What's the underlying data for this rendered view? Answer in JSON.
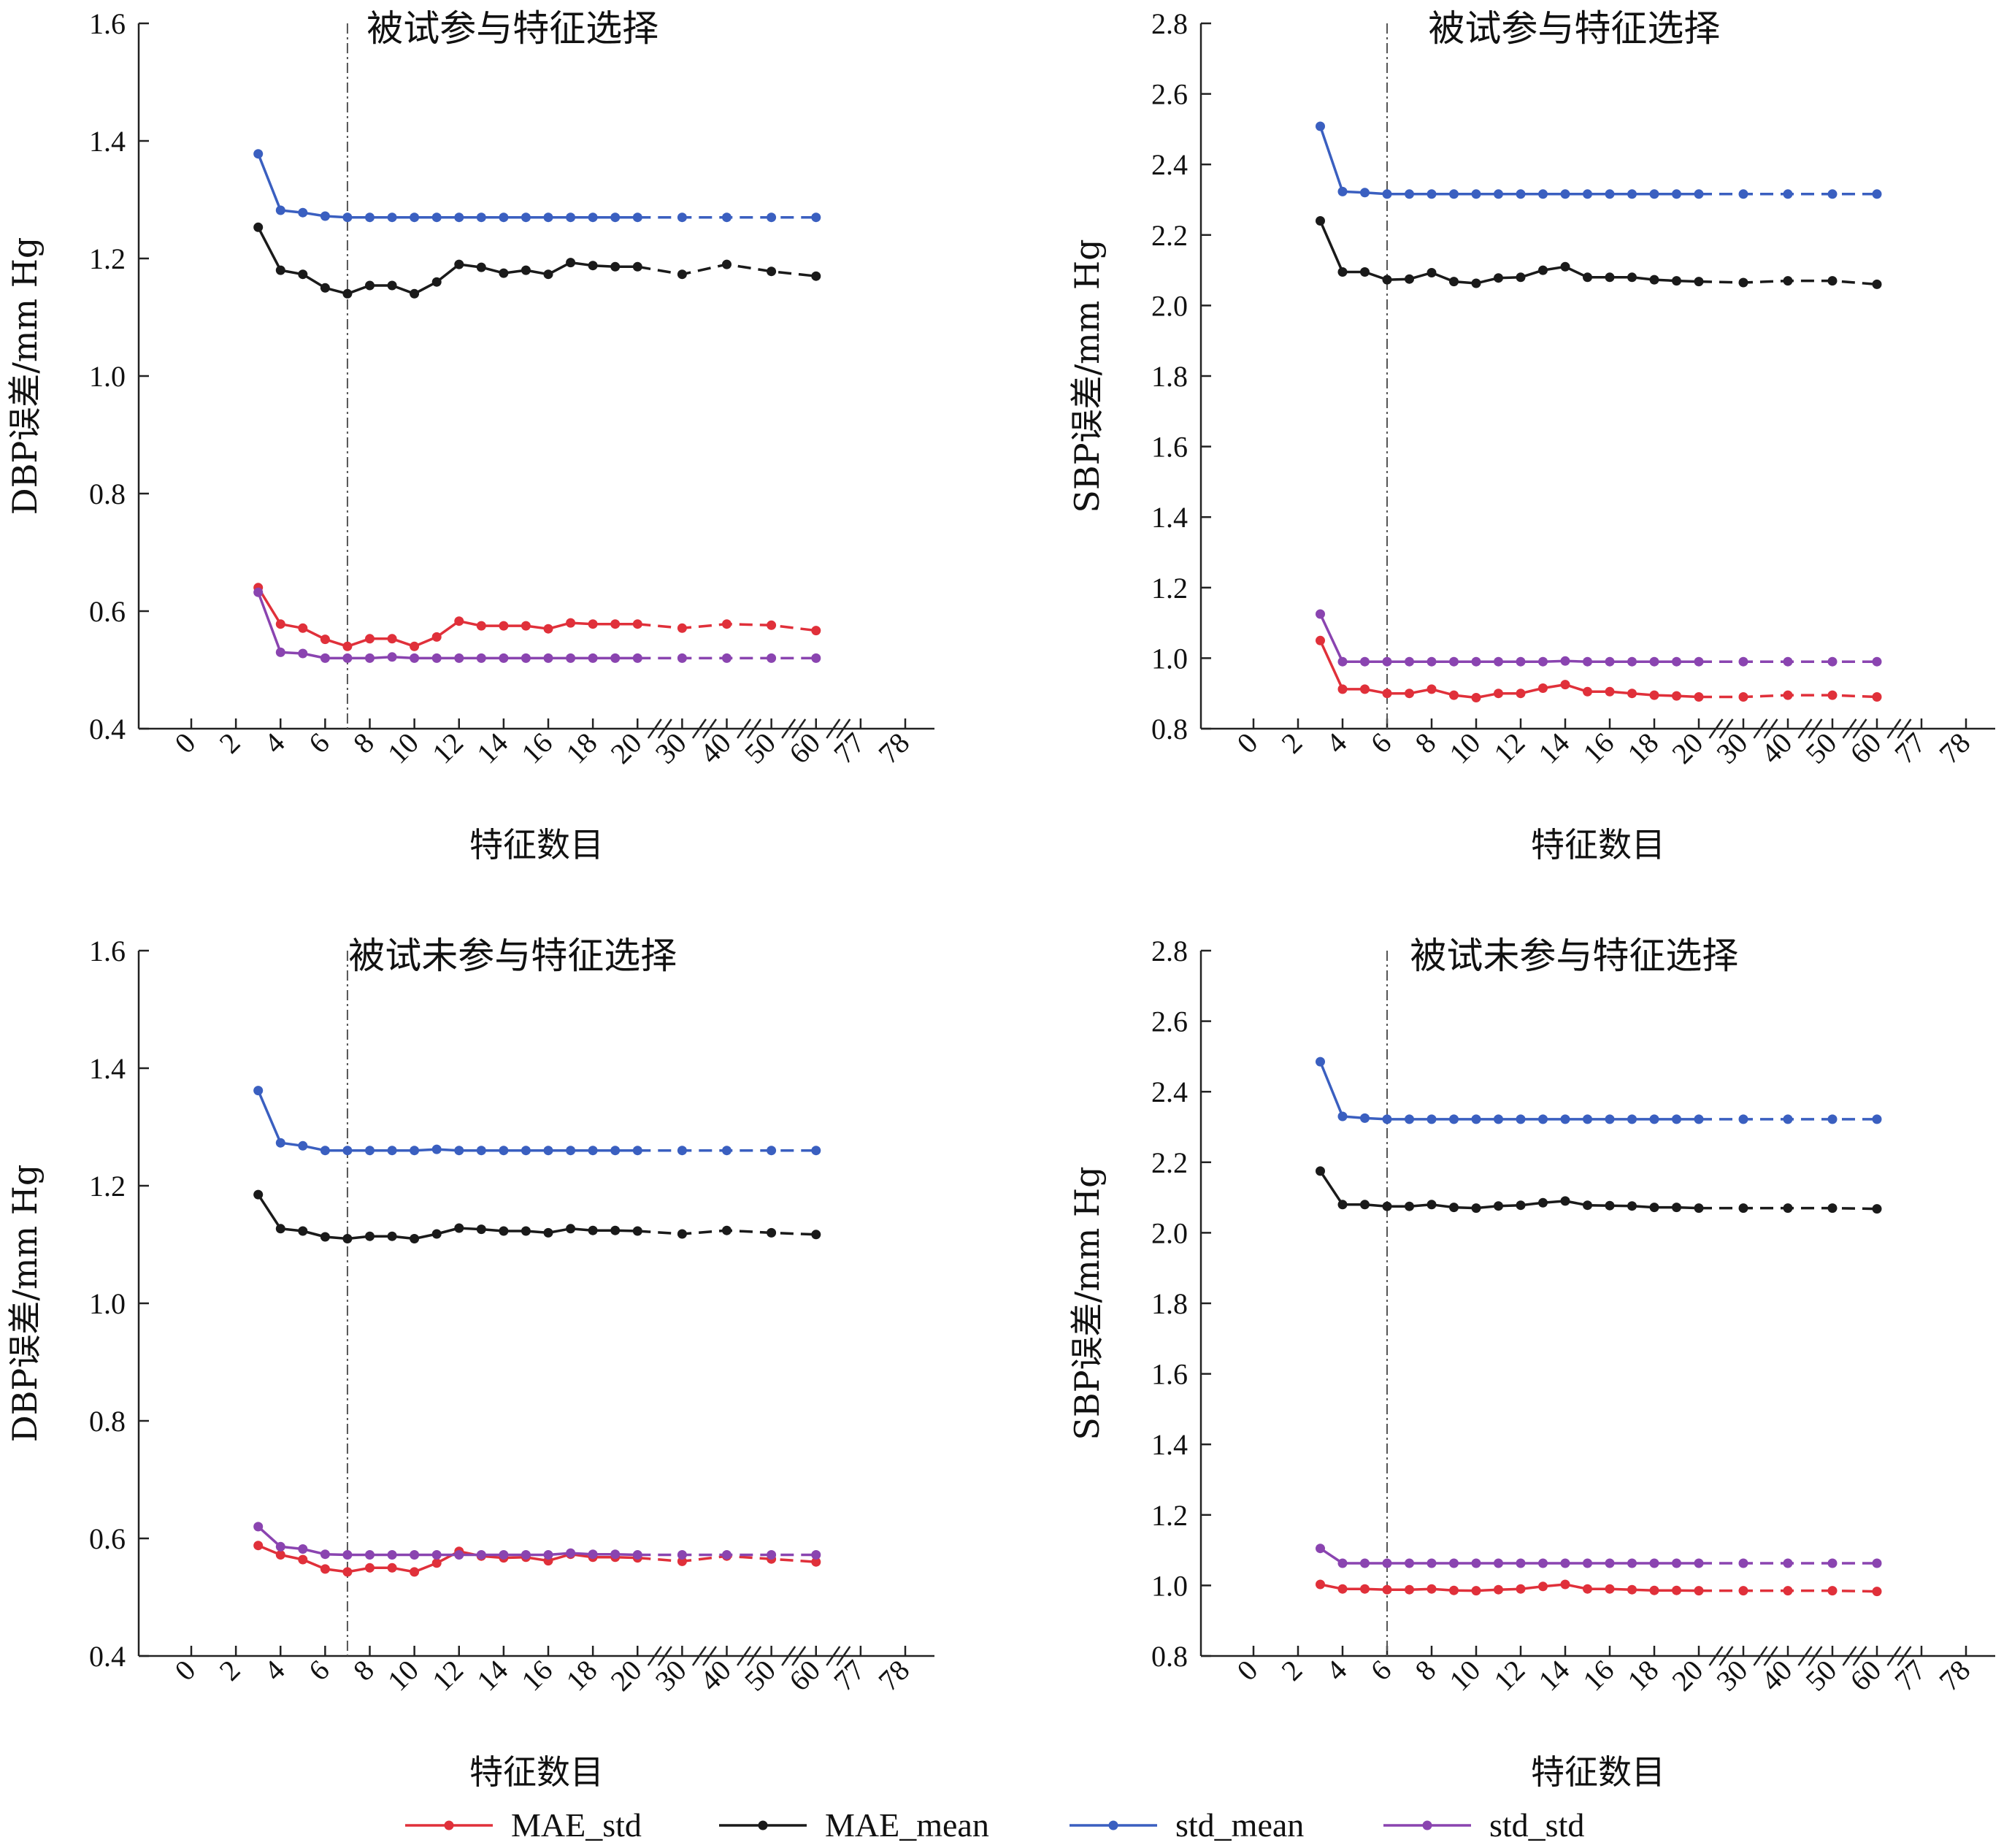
{
  "legend": [
    {
      "name": "MAE_std",
      "color": "#e0303a"
    },
    {
      "name": "MAE_mean",
      "color": "#1a1a1a"
    },
    {
      "name": "std_mean",
      "color": "#3a5fc0"
    },
    {
      "name": "std_std",
      "color": "#8a44b0"
    }
  ],
  "chart_data": [
    {
      "type": "line",
      "title": "被试参与特征选择",
      "xlabel": "特征数目",
      "ylabel": "DBP误差/mm Hg",
      "ylim": [
        0.4,
        1.6
      ],
      "yticks": [
        "0.4",
        "0.6",
        "0.8",
        "1.0",
        "1.2",
        "1.4",
        "1.6"
      ],
      "xticks": [
        "0",
        "2",
        "4",
        "6",
        "8",
        "10",
        "12",
        "14",
        "16",
        "18",
        "20",
        "30",
        "40",
        "50",
        "60",
        "77",
        "78"
      ],
      "vline_x": 7,
      "x": [
        3,
        4,
        5,
        6,
        7,
        8,
        9,
        10,
        11,
        12,
        13,
        14,
        15,
        16,
        17,
        18,
        19,
        20,
        30,
        40,
        50,
        60
      ],
      "series": [
        {
          "name": "MAE_std",
          "color": "#e0303a",
          "values": [
            0.64,
            0.578,
            0.571,
            0.552,
            0.54,
            0.553,
            0.553,
            0.54,
            0.556,
            0.583,
            0.575,
            0.575,
            0.575,
            0.57,
            0.58,
            0.578,
            0.578,
            0.578,
            0.571,
            0.578,
            0.576,
            0.567
          ]
        },
        {
          "name": "MAE_mean",
          "color": "#1a1a1a",
          "values": [
            1.253,
            1.18,
            1.173,
            1.15,
            1.14,
            1.154,
            1.154,
            1.14,
            1.16,
            1.19,
            1.185,
            1.175,
            1.18,
            1.173,
            1.193,
            1.188,
            1.186,
            1.186,
            1.173,
            1.19,
            1.178,
            1.17
          ]
        },
        {
          "name": "std_mean",
          "color": "#3a5fc0",
          "values": [
            1.378,
            1.282,
            1.278,
            1.272,
            1.27,
            1.27,
            1.27,
            1.27,
            1.27,
            1.27,
            1.27,
            1.27,
            1.27,
            1.27,
            1.27,
            1.27,
            1.27,
            1.27,
            1.27,
            1.27,
            1.27,
            1.27
          ]
        },
        {
          "name": "std_std",
          "color": "#8a44b0",
          "values": [
            0.632,
            0.53,
            0.528,
            0.52,
            0.52,
            0.52,
            0.522,
            0.52,
            0.52,
            0.52,
            0.52,
            0.52,
            0.52,
            0.52,
            0.52,
            0.52,
            0.52,
            0.52,
            0.52,
            0.52,
            0.52,
            0.52
          ]
        }
      ]
    },
    {
      "type": "line",
      "title": "被试参与特征选择",
      "xlabel": "特征数目",
      "ylabel": "SBP误差/mm Hg",
      "ylim": [
        0.8,
        2.8
      ],
      "yticks": [
        "0.8",
        "1.0",
        "1.2",
        "1.4",
        "1.6",
        "1.8",
        "2.0",
        "2.2",
        "2.4",
        "2.6",
        "2.8"
      ],
      "xticks": [
        "0",
        "2",
        "4",
        "6",
        "8",
        "10",
        "12",
        "14",
        "16",
        "18",
        "20",
        "30",
        "40",
        "50",
        "60",
        "77",
        "78"
      ],
      "vline_x": 6,
      "x": [
        3,
        4,
        5,
        6,
        7,
        8,
        9,
        10,
        11,
        12,
        13,
        14,
        15,
        16,
        17,
        18,
        19,
        20,
        30,
        40,
        50,
        60
      ],
      "series": [
        {
          "name": "MAE_std",
          "color": "#e0303a",
          "values": [
            1.05,
            0.912,
            0.912,
            0.9,
            0.9,
            0.912,
            0.895,
            0.888,
            0.9,
            0.9,
            0.915,
            0.925,
            0.905,
            0.905,
            0.9,
            0.895,
            0.893,
            0.89,
            0.89,
            0.895,
            0.895,
            0.89
          ]
        },
        {
          "name": "MAE_mean",
          "color": "#1a1a1a",
          "values": [
            2.24,
            2.095,
            2.095,
            2.073,
            2.075,
            2.093,
            2.068,
            2.063,
            2.078,
            2.08,
            2.1,
            2.11,
            2.08,
            2.08,
            2.08,
            2.073,
            2.07,
            2.068,
            2.065,
            2.07,
            2.07,
            2.06
          ]
        },
        {
          "name": "std_mean",
          "color": "#3a5fc0",
          "values": [
            2.508,
            2.323,
            2.32,
            2.316,
            2.316,
            2.316,
            2.316,
            2.316,
            2.316,
            2.316,
            2.316,
            2.316,
            2.316,
            2.316,
            2.316,
            2.316,
            2.316,
            2.316,
            2.316,
            2.316,
            2.316,
            2.316
          ]
        },
        {
          "name": "std_std",
          "color": "#8a44b0",
          "values": [
            1.125,
            0.99,
            0.99,
            0.99,
            0.99,
            0.99,
            0.99,
            0.99,
            0.99,
            0.99,
            0.99,
            0.992,
            0.99,
            0.99,
            0.99,
            0.99,
            0.99,
            0.99,
            0.99,
            0.99,
            0.99,
            0.99
          ]
        }
      ]
    },
    {
      "type": "line",
      "title": "被试未参与特征选择",
      "xlabel": "特征数目",
      "ylabel": "DBP误差/mm Hg",
      "ylim": [
        0.4,
        1.6
      ],
      "yticks": [
        "0.4",
        "0.6",
        "0.8",
        "1.0",
        "1.2",
        "1.4",
        "1.6"
      ],
      "xticks": [
        "0",
        "2",
        "4",
        "6",
        "8",
        "10",
        "12",
        "14",
        "16",
        "18",
        "20",
        "30",
        "40",
        "50",
        "60",
        "77",
        "78"
      ],
      "vline_x": 7,
      "x": [
        3,
        4,
        5,
        6,
        7,
        8,
        9,
        10,
        11,
        12,
        13,
        14,
        15,
        16,
        17,
        18,
        19,
        20,
        30,
        40,
        50,
        60
      ],
      "series": [
        {
          "name": "MAE_std",
          "color": "#e0303a",
          "values": [
            0.588,
            0.572,
            0.564,
            0.548,
            0.543,
            0.55,
            0.55,
            0.543,
            0.558,
            0.578,
            0.57,
            0.567,
            0.568,
            0.562,
            0.573,
            0.568,
            0.568,
            0.567,
            0.561,
            0.57,
            0.565,
            0.56
          ]
        },
        {
          "name": "MAE_mean",
          "color": "#1a1a1a",
          "values": [
            1.185,
            1.127,
            1.123,
            1.113,
            1.11,
            1.114,
            1.114,
            1.11,
            1.118,
            1.128,
            1.126,
            1.123,
            1.123,
            1.12,
            1.127,
            1.124,
            1.124,
            1.123,
            1.118,
            1.124,
            1.12,
            1.117
          ]
        },
        {
          "name": "std_mean",
          "color": "#3a5fc0",
          "values": [
            1.362,
            1.273,
            1.268,
            1.26,
            1.26,
            1.26,
            1.26,
            1.26,
            1.262,
            1.26,
            1.26,
            1.26,
            1.26,
            1.26,
            1.26,
            1.26,
            1.26,
            1.26,
            1.26,
            1.26,
            1.26,
            1.26
          ]
        },
        {
          "name": "std_std",
          "color": "#8a44b0",
          "values": [
            0.62,
            0.586,
            0.582,
            0.573,
            0.572,
            0.572,
            0.572,
            0.572,
            0.572,
            0.572,
            0.572,
            0.572,
            0.572,
            0.572,
            0.575,
            0.573,
            0.573,
            0.572,
            0.572,
            0.572,
            0.572,
            0.572
          ]
        }
      ]
    },
    {
      "type": "line",
      "title": "被试未参与特征选择",
      "xlabel": "特征数目",
      "ylabel": "SBP误差/mm Hg",
      "ylim": [
        0.8,
        2.8
      ],
      "yticks": [
        "0.8",
        "1.0",
        "1.2",
        "1.4",
        "1.6",
        "1.8",
        "2.0",
        "2.2",
        "2.4",
        "2.6",
        "2.8"
      ],
      "xticks": [
        "0",
        "2",
        "4",
        "6",
        "8",
        "10",
        "12",
        "14",
        "16",
        "18",
        "20",
        "30",
        "40",
        "50",
        "60",
        "77",
        "78"
      ],
      "vline_x": 6,
      "x": [
        3,
        4,
        5,
        6,
        7,
        8,
        9,
        10,
        11,
        12,
        13,
        14,
        15,
        16,
        17,
        18,
        19,
        20,
        30,
        40,
        50,
        60
      ],
      "series": [
        {
          "name": "MAE_std",
          "color": "#e0303a",
          "values": [
            1.003,
            0.99,
            0.99,
            0.988,
            0.988,
            0.99,
            0.986,
            0.985,
            0.988,
            0.99,
            0.997,
            1.003,
            0.99,
            0.99,
            0.988,
            0.986,
            0.986,
            0.985,
            0.985,
            0.985,
            0.985,
            0.983
          ]
        },
        {
          "name": "MAE_mean",
          "color": "#1a1a1a",
          "values": [
            2.175,
            2.08,
            2.08,
            2.075,
            2.075,
            2.08,
            2.072,
            2.07,
            2.076,
            2.078,
            2.085,
            2.09,
            2.078,
            2.077,
            2.076,
            2.072,
            2.072,
            2.07,
            2.07,
            2.07,
            2.07,
            2.068
          ]
        },
        {
          "name": "std_mean",
          "color": "#3a5fc0",
          "values": [
            2.485,
            2.33,
            2.325,
            2.322,
            2.322,
            2.322,
            2.322,
            2.322,
            2.322,
            2.322,
            2.322,
            2.322,
            2.322,
            2.322,
            2.322,
            2.322,
            2.322,
            2.322,
            2.322,
            2.322,
            2.322,
            2.322
          ]
        },
        {
          "name": "std_std",
          "color": "#8a44b0",
          "values": [
            1.105,
            1.063,
            1.063,
            1.063,
            1.063,
            1.063,
            1.063,
            1.063,
            1.063,
            1.063,
            1.063,
            1.063,
            1.063,
            1.063,
            1.063,
            1.063,
            1.063,
            1.063,
            1.063,
            1.063,
            1.063,
            1.063
          ]
        }
      ]
    }
  ]
}
